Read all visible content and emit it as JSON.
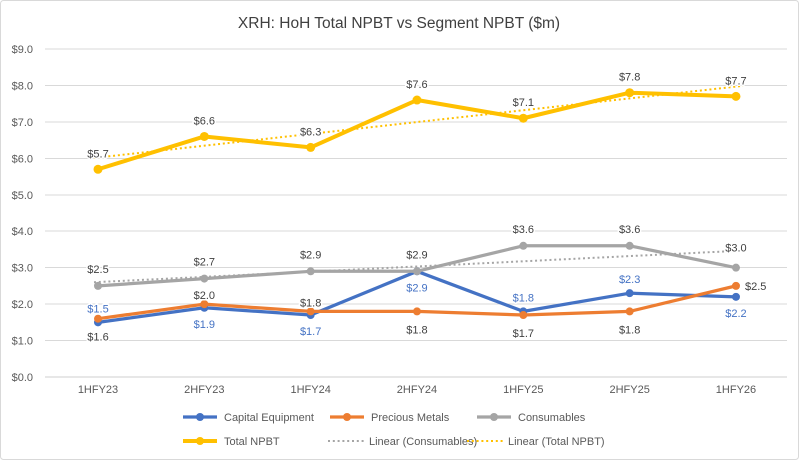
{
  "chart_data": {
    "type": "line",
    "title": "XRH: HoH Total NPBT vs Segment NPBT ($m)",
    "categories": [
      "1HFY23",
      "2HFY23",
      "1HFY24",
      "2HFY24",
      "1HFY25",
      "2HFY25",
      "1HFY26"
    ],
    "y_ticks": [
      "$0.0",
      "$1.0",
      "$2.0",
      "$3.0",
      "$4.0",
      "$5.0",
      "$6.0",
      "$7.0",
      "$8.0",
      "$9.0"
    ],
    "ylim": [
      0,
      9
    ],
    "grid": true,
    "legend_position": "bottom",
    "colors": {
      "capital_equipment": "#4472C4",
      "precious_metals": "#ED7D31",
      "consumables": "#A5A5A5",
      "total_npbt": "#FFC000",
      "dark_label": "#404040",
      "axis_text": "#595959",
      "gridline": "#D9D9D9",
      "border": "#D9D9D9"
    },
    "series": [
      {
        "name": "Capital Equipment",
        "color": "#4472C4",
        "label_color": "#4472C4",
        "values": [
          1.5,
          1.9,
          1.7,
          2.9,
          1.8,
          2.3,
          2.2
        ],
        "labels": [
          "$1.5",
          "$1.9",
          "$1.7",
          "$2.9",
          "$1.8",
          "$2.3",
          "$2.2"
        ],
        "label_side": [
          "above",
          "below",
          "below",
          "below",
          "above",
          "above",
          "below"
        ]
      },
      {
        "name": "Precious Metals",
        "color": "#ED7D31",
        "label_color": "#404040",
        "values": [
          1.6,
          2.0,
          1.8,
          1.8,
          1.7,
          1.8,
          2.5
        ],
        "labels": [
          "$1.6",
          "$2.0",
          "$1.8",
          "$1.8",
          "$1.7",
          "$1.8",
          "$2.5"
        ],
        "label_side": [
          "below",
          "above",
          "above",
          "below",
          "below",
          "below",
          "right"
        ]
      },
      {
        "name": "Consumables",
        "color": "#A5A5A5",
        "label_color": "#404040",
        "values": [
          2.5,
          2.7,
          2.9,
          2.9,
          3.6,
          3.6,
          3.0
        ],
        "labels": [
          "$2.5",
          "$2.7",
          "$2.9",
          "$2.9",
          "$3.6",
          "$3.6",
          "$3.0"
        ],
        "label_side": [
          "above",
          "above",
          "above",
          "above",
          "above",
          "above",
          "above-far"
        ]
      },
      {
        "name": "Total NPBT",
        "color": "#FFC000",
        "label_color": "#404040",
        "values": [
          5.7,
          6.6,
          6.3,
          7.6,
          7.1,
          7.8,
          7.7
        ],
        "labels": [
          "$5.7",
          "$6.6",
          "$6.3",
          "$7.6",
          "$7.1",
          "$7.8",
          "$7.7"
        ],
        "label_side": [
          "above",
          "above",
          "above",
          "above",
          "above",
          "above",
          "above"
        ]
      }
    ],
    "trendlines": [
      {
        "name": "Linear (Consumables)",
        "color": "#A5A5A5",
        "start_value": 2.6,
        "end_value": 3.46
      },
      {
        "name": "Linear (Total NPBT)",
        "color": "#FFC000",
        "start_value": 6.01,
        "end_value": 7.99
      }
    ]
  }
}
